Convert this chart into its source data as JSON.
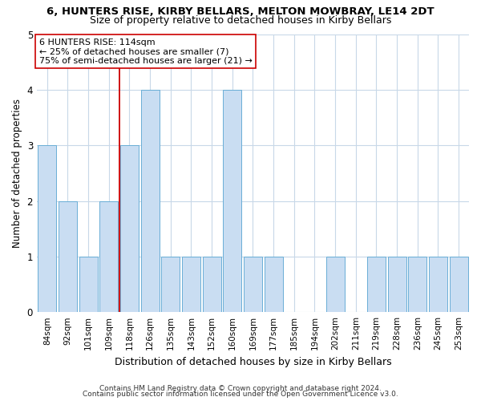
{
  "title1": "6, HUNTERS RISE, KIRBY BELLARS, MELTON MOWBRAY, LE14 2DT",
  "title2": "Size of property relative to detached houses in Kirby Bellars",
  "xlabel": "Distribution of detached houses by size in Kirby Bellars",
  "ylabel": "Number of detached properties",
  "footer1": "Contains HM Land Registry data © Crown copyright and database right 2024.",
  "footer2": "Contains public sector information licensed under the Open Government Licence v3.0.",
  "categories": [
    "84sqm",
    "92sqm",
    "101sqm",
    "109sqm",
    "118sqm",
    "126sqm",
    "135sqm",
    "143sqm",
    "152sqm",
    "160sqm",
    "169sqm",
    "177sqm",
    "185sqm",
    "194sqm",
    "202sqm",
    "211sqm",
    "219sqm",
    "228sqm",
    "236sqm",
    "245sqm",
    "253sqm"
  ],
  "values": [
    3,
    2,
    1,
    2,
    3,
    4,
    1,
    1,
    1,
    4,
    1,
    1,
    0,
    0,
    1,
    0,
    1,
    1,
    1,
    1,
    1
  ],
  "bar_color": "#c9ddf2",
  "bar_edge_color": "#6aaed6",
  "vline_x": 3.5,
  "vline_color": "#cc0000",
  "annotation_text": "6 HUNTERS RISE: 114sqm\n← 25% of detached houses are smaller (7)\n75% of semi-detached houses are larger (21) →",
  "annotation_box_color": "#ffffff",
  "annotation_box_edge": "#cc0000",
  "ylim": [
    0,
    5
  ],
  "yticks": [
    0,
    1,
    2,
    3,
    4,
    5
  ],
  "background_color": "#ffffff",
  "grid_color": "#c8d8e8",
  "title1_fontsize": 9.5,
  "title2_fontsize": 9,
  "xlabel_fontsize": 9,
  "ylabel_fontsize": 8.5,
  "tick_fontsize": 7.5,
  "ann_fontsize": 8,
  "footer_fontsize": 6.5
}
